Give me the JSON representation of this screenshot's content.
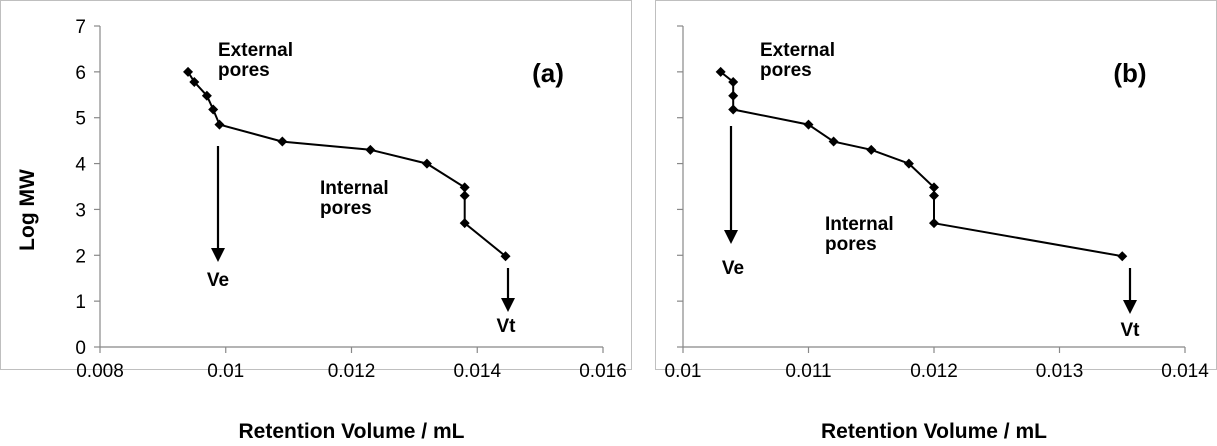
{
  "figure": {
    "ylabel": "Log MW"
  },
  "chart_data": [
    {
      "type": "line",
      "panel": "(a)",
      "xlabel": "Retention Volume / mL",
      "ylabel": "Log MW",
      "xlim": [
        0.008,
        0.016
      ],
      "ylim": [
        0,
        7
      ],
      "x_ticks": [
        "0.008",
        "0.01",
        "0.012",
        "0.014",
        "0.016"
      ],
      "y_ticks": [
        "0",
        "1",
        "2",
        "3",
        "4",
        "5",
        "6",
        "7"
      ],
      "grid": false,
      "series": [
        {
          "x": [
            0.0094,
            0.0095,
            0.0097,
            0.0098,
            0.0099,
            0.0109,
            0.0123,
            0.0132,
            0.0138,
            0.0138,
            0.0138,
            0.01445
          ],
          "y": [
            6.0,
            5.78,
            5.48,
            5.18,
            4.85,
            4.48,
            4.3,
            4.0,
            3.48,
            3.3,
            2.7,
            1.98
          ]
        }
      ],
      "annotations": {
        "external": [
          "External",
          "pores"
        ],
        "internal": [
          "Internal",
          "pores"
        ],
        "ve": "Ve",
        "vt": "Vt"
      }
    },
    {
      "type": "line",
      "panel": "(b)",
      "xlabel": "Retention Volume / mL",
      "ylabel": "",
      "xlim": [
        0.01,
        0.014
      ],
      "ylim": [
        0,
        7
      ],
      "x_ticks": [
        "0.01",
        "0.011",
        "0.012",
        "0.013",
        "0.014"
      ],
      "y_ticks": [],
      "grid": false,
      "series": [
        {
          "x": [
            0.0103,
            0.0104,
            0.0104,
            0.0104,
            0.011,
            0.0112,
            0.0115,
            0.0118,
            0.012,
            0.012,
            0.012,
            0.0135
          ],
          "y": [
            6.0,
            5.78,
            5.48,
            5.18,
            4.85,
            4.48,
            4.3,
            4.0,
            3.48,
            3.3,
            2.7,
            1.98
          ]
        }
      ],
      "annotations": {
        "external": [
          "External",
          "pores"
        ],
        "internal": [
          "Internal",
          "pores"
        ],
        "ve": "Ve",
        "vt": "Vt"
      }
    }
  ]
}
